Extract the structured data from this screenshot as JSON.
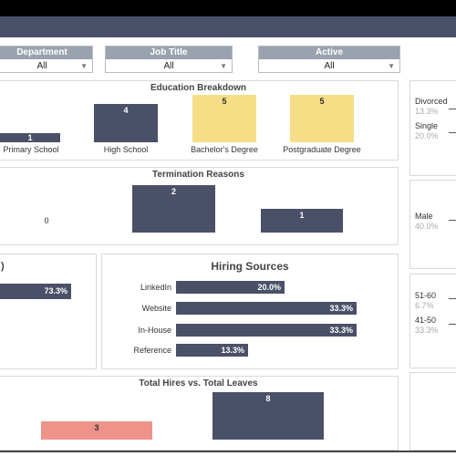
{
  "filters": [
    {
      "label": "Department",
      "value": "All"
    },
    {
      "label": "Job Title",
      "value": "All"
    },
    {
      "label": "Active",
      "value": "All"
    }
  ],
  "education": {
    "title": "Education Breakdown",
    "categories": [
      "Primary School",
      "High School",
      "Bachelor's Degree",
      "Postgraduate Degree"
    ],
    "values": [
      "1",
      "4",
      "5",
      "5"
    ]
  },
  "termination": {
    "title": "Termination Reasons",
    "values": [
      "0",
      "2",
      "1"
    ]
  },
  "left_metric": {
    "value": "73.3%"
  },
  "hiring": {
    "title": "Hiring Sources",
    "items": [
      {
        "label": "LinkedIn",
        "value": "20.0%"
      },
      {
        "label": "Website",
        "value": "33.3%"
      },
      {
        "label": "In-House",
        "value": "33.3%"
      },
      {
        "label": "Reference",
        "value": "13.3%"
      }
    ]
  },
  "hires_leaves": {
    "title": "Total Hires vs. Total Leaves",
    "values": [
      "3",
      "8"
    ]
  },
  "marital": [
    {
      "label": "Divorced",
      "pct": "13.3%"
    },
    {
      "label": "Single",
      "pct": "20.0%"
    }
  ],
  "gender": [
    {
      "label": "Male",
      "pct": "40.0%"
    }
  ],
  "age": [
    {
      "label": "51-60",
      "pct": "6.7%"
    },
    {
      "label": "41-50",
      "pct": "33.3%"
    }
  ]
}
